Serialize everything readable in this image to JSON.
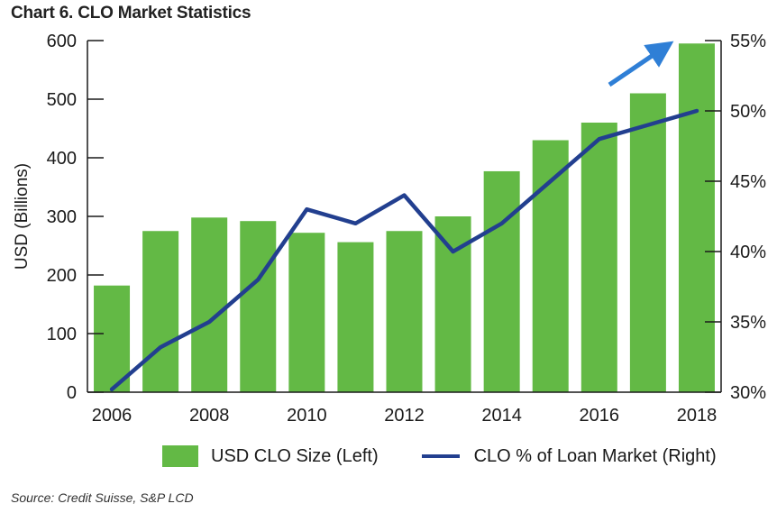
{
  "title": "Chart 6. CLO Market Statistics",
  "source": "Source: Credit Suisse, S&P LCD",
  "colors": {
    "bar": "#63b945",
    "line": "#223f8f",
    "arrow": "#2f7fd6",
    "axis": "#1a1a1a"
  },
  "chart_data": {
    "type": "bar",
    "categories": [
      "2006",
      "2007",
      "2008",
      "2009",
      "2010",
      "2011",
      "2012",
      "2013",
      "2014",
      "2015",
      "2016",
      "2017",
      "2018"
    ],
    "x_tick_labels": [
      "2006",
      "2008",
      "2010",
      "2012",
      "2014",
      "2016",
      "2018"
    ],
    "ylabel": "USD (Billions)",
    "ylim": [
      0,
      600
    ],
    "y_ticks": [
      0,
      100,
      200,
      300,
      400,
      500,
      600
    ],
    "y2lim": [
      30,
      55
    ],
    "y2_ticks": [
      "30%",
      "35%",
      "40%",
      "45%",
      "50%",
      "55%"
    ],
    "y2_values": [
      30,
      35,
      40,
      45,
      50,
      55
    ],
    "series": [
      {
        "name": "USD CLO Size (Left)",
        "type": "bar",
        "axis": "left",
        "values": [
          182,
          275,
          298,
          292,
          272,
          256,
          275,
          300,
          377,
          430,
          460,
          510,
          595
        ]
      },
      {
        "name": "CLO % of Loan Market (Right)",
        "type": "line",
        "axis": "right",
        "values": [
          30.2,
          33.2,
          35.0,
          38.0,
          43.0,
          42.0,
          44.0,
          40.0,
          42.0,
          45.0,
          48.0,
          49.0,
          50.0
        ]
      }
    ],
    "legend": "bottom",
    "grid": false
  }
}
